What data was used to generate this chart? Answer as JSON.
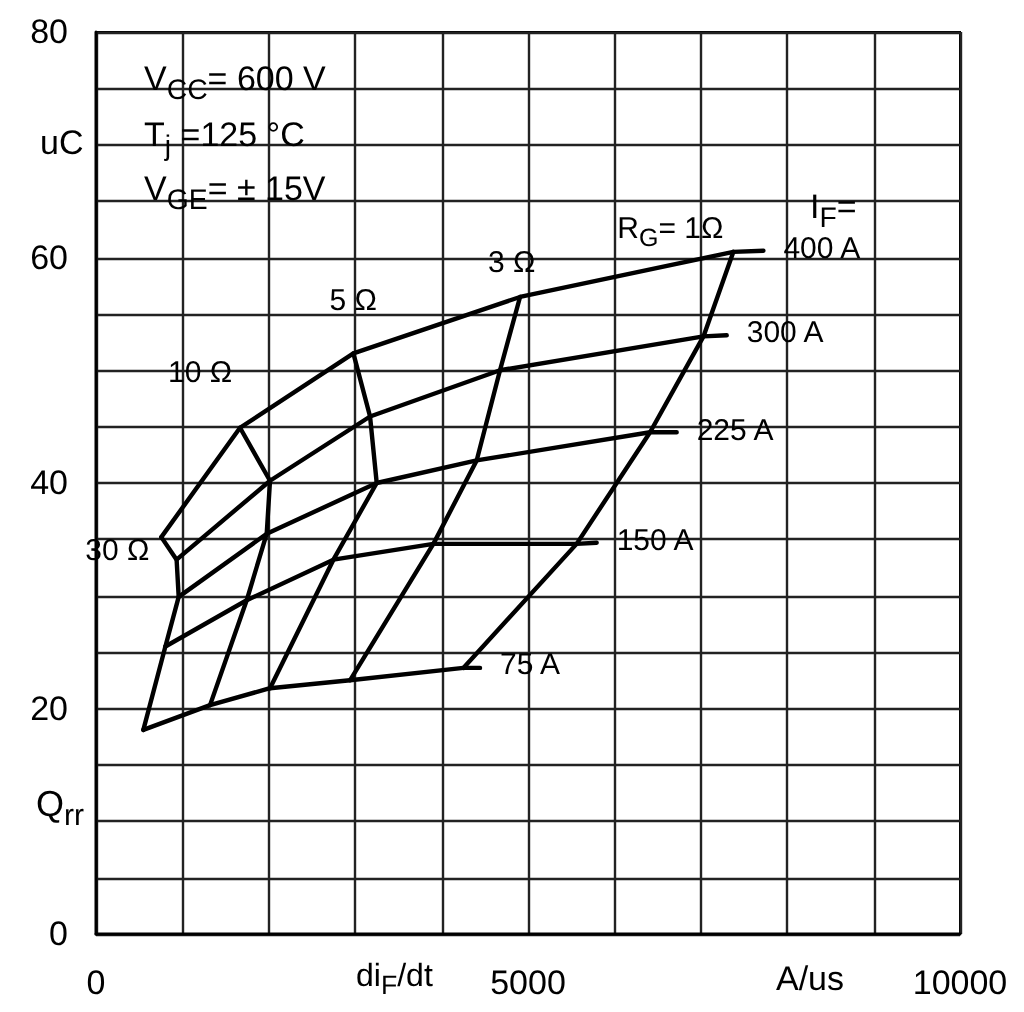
{
  "chart_data": {
    "type": "line",
    "xlabel": "di$_{F}$/dt",
    "ylabel": "Q$_{rr}$",
    "annotations": [
      "V$_{CC}$= 600 V",
      "T$_{j}$   =125 °C",
      "V$_{GE}$= ± 15V",
      "I$_{F}$=",
      "uC",
      "A/us"
    ],
    "xlim": [
      0,
      10000
    ],
    "ylim": [
      0,
      80
    ],
    "xticks": [
      0,
      {
        "value": 1000,
        "label": null
      },
      {
        "value": 2000,
        "label": null
      },
      {
        "value": 3000,
        "label": null
      },
      {
        "value": 4000,
        "label": null
      },
      5000,
      {
        "value": 6000,
        "label": null
      },
      {
        "value": 7000,
        "label": null
      },
      {
        "value": 8000,
        "label": null
      },
      {
        "value": 9000,
        "label": null
      },
      10000
    ],
    "yticks": [
      0,
      {
        "value": 5,
        "label": null
      },
      {
        "value": 10,
        "label": null
      },
      {
        "value": 15,
        "label": null
      },
      20,
      {
        "value": 25,
        "label": null
      },
      {
        "value": 30,
        "label": null
      },
      {
        "value": 35,
        "label": null
      },
      40,
      {
        "value": 45,
        "label": null
      },
      {
        "value": 50,
        "label": null
      },
      {
        "value": 55,
        "label": null
      },
      60,
      {
        "value": 65,
        "label": null
      },
      {
        "value": 70,
        "label": null
      },
      {
        "value": 75,
        "label": null
      },
      80
    ],
    "grid": true,
    "legend": false,
    "marker": "none",
    "line_style": "solid",
    "series": [
      {
        "name": "75 A",
        "color": "#000000",
        "x": [
          548,
          1320,
          2014,
          2940,
          4252,
          4445
        ],
        "values": [
          18.1,
          20.3,
          21.8,
          22.5,
          23.6,
          23.6
        ]
      },
      {
        "name": "150 A",
        "color": "#000000",
        "x": [
          803,
          1744,
          2748,
          3905,
          5563,
          5795
        ],
        "values": [
          25.5,
          29.6,
          33.2,
          34.6,
          34.6,
          34.7
        ]
      },
      {
        "name": "225 A",
        "color": "#000000",
        "x": [
          957,
          1976,
          3249,
          4406,
          6413,
          6721
        ],
        "values": [
          29.9,
          35.5,
          40.0,
          42.0,
          44.5,
          44.5
        ]
      },
      {
        "name": "300 A",
        "color": "#000000",
        "x": [
          933,
          2014,
          3172,
          4676,
          7031,
          7300
        ],
        "values": [
          33.2,
          40.2,
          45.9,
          50.0,
          53.0,
          53.1
        ]
      },
      {
        "name": "400 A",
        "color": "#000000",
        "x": [
          756,
          1667,
          2979,
          4908,
          7377,
          7725
        ],
        "values": [
          35.2,
          44.9,
          51.5,
          56.5,
          60.5,
          60.6
        ]
      },
      {
        "name": "30 Ω",
        "color": "#000000",
        "x": [
          548,
          803,
          957,
          933,
          756
        ],
        "values": [
          18.1,
          25.5,
          29.9,
          33.2,
          35.2
        ]
      },
      {
        "name": "10 Ω",
        "color": "#000000",
        "x": [
          1320,
          1744,
          1976,
          2014,
          1667
        ],
        "values": [
          20.3,
          29.6,
          35.5,
          40.2,
          44.9
        ]
      },
      {
        "name": "5 Ω",
        "color": "#000000",
        "x": [
          2014,
          2748,
          3249,
          3172,
          2979
        ],
        "values": [
          21.8,
          33.2,
          40.0,
          45.9,
          51.5
        ]
      },
      {
        "name": "3 Ω",
        "color": "#000000",
        "x": [
          2940,
          3905,
          4406,
          4676,
          4908
        ],
        "values": [
          22.5,
          34.6,
          42.0,
          50.0,
          56.5
        ]
      },
      {
        "name": "R$_{G}$= 1Ω",
        "color": "#000000",
        "x": [
          4252,
          5563,
          6413,
          7031,
          7377
        ],
        "values": [
          23.6,
          34.6,
          44.5,
          53.0,
          60.5
        ]
      }
    ]
  }
}
